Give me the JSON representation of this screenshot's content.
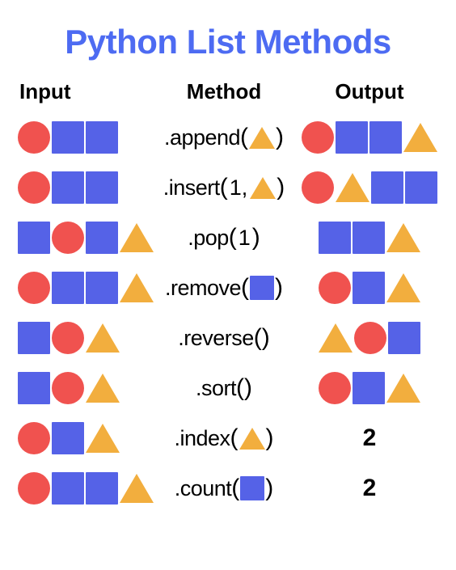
{
  "type": "infographic",
  "title": "Python List Methods",
  "title_color": "#4d6bf2",
  "background_color": "#ffffff",
  "text_color": "#000000",
  "shape_colors": {
    "red_circle": {
      "shape": "circle",
      "color": "#f0524f"
    },
    "blue_square": {
      "shape": "square",
      "color": "#5562e7"
    },
    "yellow_triangle": {
      "shape": "triangle",
      "color": "#f2ae3e"
    }
  },
  "shape_size_row": 40,
  "shape_size_arg": 30,
  "headers": {
    "input": "Input",
    "method": "Method",
    "output": "Output"
  },
  "rows": [
    {
      "input": [
        "red_circle",
        "blue_square",
        "blue_square"
      ],
      "method": {
        "name": ".append",
        "args": [
          {
            "kind": "shape",
            "value": "yellow_triangle"
          }
        ]
      },
      "output": {
        "kind": "shapes",
        "value": [
          "red_circle",
          "blue_square",
          "blue_square",
          "yellow_triangle"
        ]
      }
    },
    {
      "input": [
        "red_circle",
        "blue_square",
        "blue_square"
      ],
      "method": {
        "name": ".insert",
        "args": [
          {
            "kind": "text",
            "value": "1,"
          },
          {
            "kind": "shape",
            "value": "yellow_triangle"
          }
        ]
      },
      "output": {
        "kind": "shapes",
        "value": [
          "red_circle",
          "yellow_triangle",
          "blue_square",
          "blue_square"
        ]
      }
    },
    {
      "input": [
        "blue_square",
        "red_circle",
        "blue_square",
        "yellow_triangle"
      ],
      "method": {
        "name": ".pop",
        "args": [
          {
            "kind": "text",
            "value": "1"
          }
        ]
      },
      "output": {
        "kind": "shapes",
        "value": [
          "blue_square",
          "blue_square",
          "yellow_triangle"
        ]
      }
    },
    {
      "input": [
        "red_circle",
        "blue_square",
        "blue_square",
        "yellow_triangle"
      ],
      "method": {
        "name": ".remove",
        "args": [
          {
            "kind": "shape",
            "value": "blue_square"
          }
        ]
      },
      "output": {
        "kind": "shapes",
        "value": [
          "red_circle",
          "blue_square",
          "yellow_triangle"
        ]
      }
    },
    {
      "input": [
        "blue_square",
        "red_circle",
        "yellow_triangle"
      ],
      "method": {
        "name": ".reverse",
        "args": []
      },
      "output": {
        "kind": "shapes",
        "value": [
          "yellow_triangle",
          "red_circle",
          "blue_square"
        ]
      }
    },
    {
      "input": [
        "blue_square",
        "red_circle",
        "yellow_triangle"
      ],
      "method": {
        "name": ".sort",
        "args": []
      },
      "output": {
        "kind": "shapes",
        "value": [
          "red_circle",
          "blue_square",
          "yellow_triangle"
        ]
      }
    },
    {
      "input": [
        "red_circle",
        "blue_square",
        "yellow_triangle"
      ],
      "method": {
        "name": ".index",
        "args": [
          {
            "kind": "shape",
            "value": "yellow_triangle"
          }
        ]
      },
      "output": {
        "kind": "text",
        "value": "2"
      }
    },
    {
      "input": [
        "red_circle",
        "blue_square",
        "blue_square",
        "yellow_triangle"
      ],
      "method": {
        "name": ".count",
        "args": [
          {
            "kind": "shape",
            "value": "blue_square"
          }
        ]
      },
      "output": {
        "kind": "text",
        "value": "2"
      }
    }
  ]
}
